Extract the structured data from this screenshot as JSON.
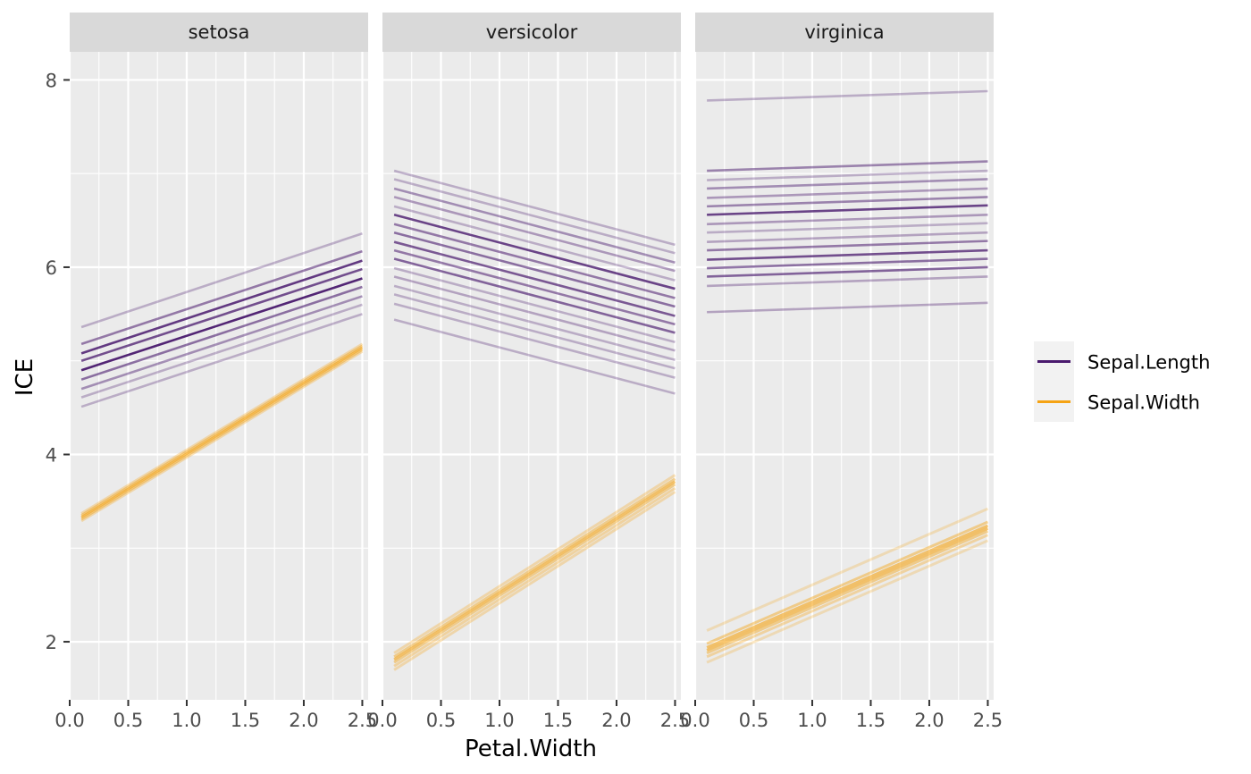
{
  "chart_data": {
    "type": "line",
    "xlabel": "Petal.Width",
    "ylabel": "ICE",
    "xlim": [
      0.0,
      2.55
    ],
    "ylim": [
      1.38,
      8.3
    ],
    "x_ticks": [
      "0.0",
      "0.5",
      "1.0",
      "1.5",
      "2.0",
      "2.5"
    ],
    "x_tick_values": [
      0.0,
      0.5,
      1.0,
      1.5,
      2.0,
      2.5
    ],
    "y_ticks": [
      "2",
      "4",
      "6",
      "8"
    ],
    "y_tick_values": [
      2,
      4,
      6,
      8
    ],
    "grid": true,
    "legend_position": "right",
    "colors": {
      "Sepal.Length": "#4a1a6e",
      "Sepal.Width": "#f5a314"
    },
    "legend": [
      {
        "name": "Sepal.Length",
        "color": "#4a1a6e"
      },
      {
        "name": "Sepal.Width",
        "color": "#f5a314"
      }
    ],
    "panels": [
      {
        "label": "setosa",
        "series": [
          {
            "name": "Sepal.Length",
            "x": [
              0.1,
              2.5
            ],
            "lines": [
              {
                "y": [
                  5.36,
                  6.36
                ],
                "alpha": 0.3
              },
              {
                "y": [
                  5.18,
                  6.17
                ],
                "alpha": 0.55
              },
              {
                "y": [
                  5.08,
                  6.07
                ],
                "alpha": 0.85
              },
              {
                "y": [
                  5.0,
                  5.98
                ],
                "alpha": 0.75
              },
              {
                "y": [
                  4.9,
                  5.88
                ],
                "alpha": 0.95
              },
              {
                "y": [
                  4.8,
                  5.79
                ],
                "alpha": 0.6
              },
              {
                "y": [
                  4.7,
                  5.69
                ],
                "alpha": 0.45
              },
              {
                "y": [
                  4.61,
                  5.6
                ],
                "alpha": 0.3
              },
              {
                "y": [
                  4.51,
                  5.5
                ],
                "alpha": 0.3
              }
            ]
          },
          {
            "name": "Sepal.Width",
            "x": [
              0.1,
              2.5
            ],
            "lines": [
              {
                "y": [
                  3.29,
                  5.1
                ],
                "alpha": 0.3
              },
              {
                "y": [
                  3.31,
                  5.12
                ],
                "alpha": 0.45
              },
              {
                "y": [
                  3.33,
                  5.14
                ],
                "alpha": 0.6
              },
              {
                "y": [
                  3.35,
                  5.16
                ],
                "alpha": 0.45
              },
              {
                "y": [
                  3.37,
                  5.18
                ],
                "alpha": 0.3
              }
            ]
          }
        ]
      },
      {
        "label": "versicolor",
        "series": [
          {
            "name": "Sepal.Length",
            "x": [
              0.1,
              2.5
            ],
            "lines": [
              {
                "y": [
                  7.03,
                  6.24
                ],
                "alpha": 0.3
              },
              {
                "y": [
                  6.94,
                  6.15
                ],
                "alpha": 0.3
              },
              {
                "y": [
                  6.84,
                  6.05
                ],
                "alpha": 0.45
              },
              {
                "y": [
                  6.75,
                  5.96
                ],
                "alpha": 0.4
              },
              {
                "y": [
                  6.65,
                  5.86
                ],
                "alpha": 0.3
              },
              {
                "y": [
                  6.56,
                  5.77
                ],
                "alpha": 0.8
              },
              {
                "y": [
                  6.46,
                  5.67
                ],
                "alpha": 0.55
              },
              {
                "y": [
                  6.37,
                  5.58
                ],
                "alpha": 0.6
              },
              {
                "y": [
                  6.27,
                  5.48
                ],
                "alpha": 0.7
              },
              {
                "y": [
                  6.18,
                  5.39
                ],
                "alpha": 0.55
              },
              {
                "y": [
                  6.09,
                  5.3
                ],
                "alpha": 0.65
              },
              {
                "y": [
                  5.99,
                  5.2
                ],
                "alpha": 0.3
              },
              {
                "y": [
                  5.9,
                  5.11
                ],
                "alpha": 0.35
              },
              {
                "y": [
                  5.8,
                  5.01
                ],
                "alpha": 0.3
              },
              {
                "y": [
                  5.71,
                  4.92
                ],
                "alpha": 0.3
              },
              {
                "y": [
                  5.61,
                  4.82
                ],
                "alpha": 0.3
              },
              {
                "y": [
                  5.44,
                  4.65
                ],
                "alpha": 0.3
              }
            ]
          },
          {
            "name": "Sepal.Width",
            "x": [
              0.1,
              2.5
            ],
            "lines": [
              {
                "y": [
                  1.7,
                  3.6
                ],
                "alpha": 0.3
              },
              {
                "y": [
                  1.74,
                  3.64
                ],
                "alpha": 0.35
              },
              {
                "y": [
                  1.78,
                  3.68
                ],
                "alpha": 0.45
              },
              {
                "y": [
                  1.81,
                  3.71
                ],
                "alpha": 0.6
              },
              {
                "y": [
                  1.84,
                  3.74
                ],
                "alpha": 0.45
              },
              {
                "y": [
                  1.88,
                  3.78
                ],
                "alpha": 0.3
              }
            ]
          }
        ]
      },
      {
        "label": "virginica",
        "series": [
          {
            "name": "Sepal.Length",
            "x": [
              0.1,
              2.5
            ],
            "lines": [
              {
                "y": [
                  7.78,
                  7.88
                ],
                "alpha": 0.3
              },
              {
                "y": [
                  7.03,
                  7.13
                ],
                "alpha": 0.5
              },
              {
                "y": [
                  6.93,
                  7.03
                ],
                "alpha": 0.3
              },
              {
                "y": [
                  6.84,
                  6.94
                ],
                "alpha": 0.45
              },
              {
                "y": [
                  6.74,
                  6.84
                ],
                "alpha": 0.4
              },
              {
                "y": [
                  6.65,
                  6.75
                ],
                "alpha": 0.5
              },
              {
                "y": [
                  6.56,
                  6.66
                ],
                "alpha": 0.8
              },
              {
                "y": [
                  6.46,
                  6.56
                ],
                "alpha": 0.4
              },
              {
                "y": [
                  6.37,
                  6.47
                ],
                "alpha": 0.3
              },
              {
                "y": [
                  6.27,
                  6.37
                ],
                "alpha": 0.35
              },
              {
                "y": [
                  6.18,
                  6.28
                ],
                "alpha": 0.55
              },
              {
                "y": [
                  6.08,
                  6.18
                ],
                "alpha": 0.75
              },
              {
                "y": [
                  5.99,
                  6.09
                ],
                "alpha": 0.6
              },
              {
                "y": [
                  5.9,
                  6.0
                ],
                "alpha": 0.65
              },
              {
                "y": [
                  5.8,
                  5.9
                ],
                "alpha": 0.35
              },
              {
                "y": [
                  5.52,
                  5.62
                ],
                "alpha": 0.35
              }
            ]
          },
          {
            "name": "Sepal.Width",
            "x": [
              0.1,
              2.5
            ],
            "lines": [
              {
                "y": [
                  2.12,
                  3.42
                ],
                "alpha": 0.25
              },
              {
                "y": [
                  1.98,
                  3.28
                ],
                "alpha": 0.45
              },
              {
                "y": [
                  1.94,
                  3.24
                ],
                "alpha": 0.6
              },
              {
                "y": [
                  1.91,
                  3.21
                ],
                "alpha": 0.6
              },
              {
                "y": [
                  1.88,
                  3.18
                ],
                "alpha": 0.45
              },
              {
                "y": [
                  1.84,
                  3.14
                ],
                "alpha": 0.35
              },
              {
                "y": [
                  1.78,
                  3.08
                ],
                "alpha": 0.25
              }
            ]
          }
        ]
      }
    ]
  }
}
